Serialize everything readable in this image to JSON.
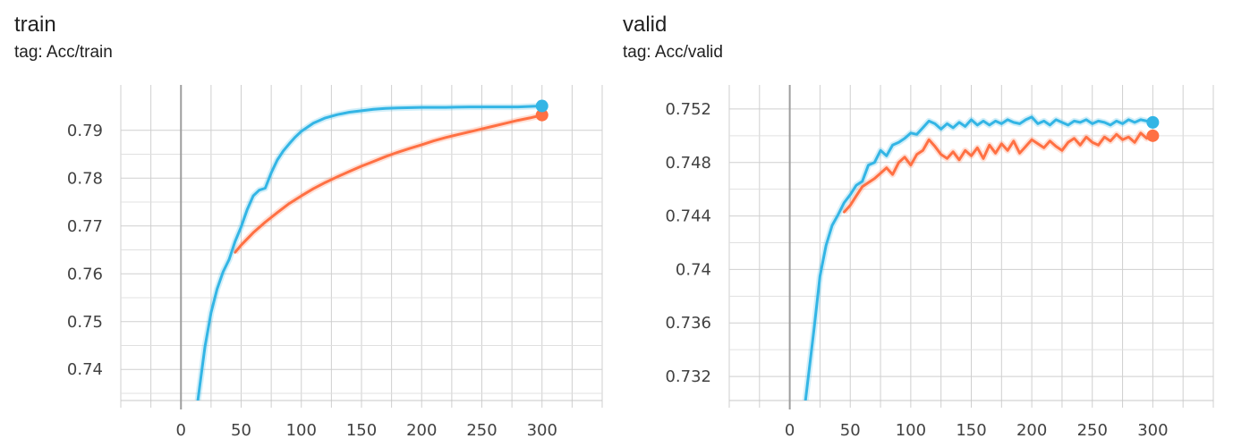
{
  "chart_data": [
    {
      "type": "line",
      "title": "train",
      "subtitle": "tag: Acc/train",
      "xlim": [
        -50,
        350
      ],
      "ylim": [
        0.7335,
        0.7995
      ],
      "xticks": [
        0,
        50,
        100,
        150,
        200,
        250,
        300
      ],
      "yticks": [
        0.74,
        0.75,
        0.76,
        0.77,
        0.78,
        0.79
      ],
      "ytick_labels": [
        "0.74",
        "0.75",
        "0.76",
        "0.77",
        "0.78",
        "0.79"
      ],
      "grid": true,
      "series": [
        {
          "color": "#ff7043",
          "x": [
            45,
            50,
            60,
            70,
            80,
            90,
            100,
            110,
            120,
            130,
            140,
            150,
            160,
            170,
            180,
            190,
            200,
            210,
            220,
            230,
            240,
            250,
            260,
            270,
            280,
            290,
            300
          ],
          "y": [
            0.7645,
            0.766,
            0.7686,
            0.7708,
            0.7728,
            0.7747,
            0.7763,
            0.7778,
            0.7791,
            0.7803,
            0.7814,
            0.7825,
            0.7835,
            0.7845,
            0.7854,
            0.7862,
            0.787,
            0.7878,
            0.7885,
            0.7891,
            0.7897,
            0.7903,
            0.7909,
            0.7915,
            0.7921,
            0.7926,
            0.7932
          ]
        },
        {
          "color": "#33b5e5",
          "x": [
            14,
            20,
            25,
            30,
            35,
            40,
            45,
            50,
            55,
            60,
            65,
            70,
            75,
            80,
            85,
            90,
            95,
            100,
            110,
            120,
            130,
            140,
            150,
            160,
            170,
            180,
            200,
            220,
            240,
            260,
            280,
            300
          ],
          "y": [
            0.7335,
            0.7448,
            0.7519,
            0.7568,
            0.7604,
            0.763,
            0.7668,
            0.7698,
            0.7734,
            0.7763,
            0.7775,
            0.7779,
            0.7811,
            0.7838,
            0.7857,
            0.7872,
            0.7886,
            0.7898,
            0.7915,
            0.7926,
            0.7933,
            0.7938,
            0.7941,
            0.7944,
            0.7946,
            0.7947,
            0.7948,
            0.7948,
            0.7949,
            0.7949,
            0.7949,
            0.7951
          ]
        }
      ]
    },
    {
      "type": "line",
      "title": "valid",
      "subtitle": "tag: Acc/valid",
      "xlim": [
        -50,
        350
      ],
      "ylim": [
        0.7302,
        0.7538
      ],
      "xticks": [
        0,
        50,
        100,
        150,
        200,
        250,
        300
      ],
      "yticks": [
        0.732,
        0.736,
        0.74,
        0.744,
        0.748,
        0.752
      ],
      "ytick_labels": [
        "0.732",
        "0.736",
        "0.74",
        "0.744",
        "0.748",
        "0.752"
      ],
      "grid": true,
      "series": [
        {
          "color": "#ff7043",
          "x": [
            45,
            50,
            55,
            60,
            65,
            70,
            75,
            80,
            85,
            90,
            95,
            100,
            105,
            110,
            115,
            120,
            125,
            130,
            135,
            140,
            145,
            150,
            155,
            160,
            165,
            170,
            175,
            180,
            185,
            190,
            195,
            200,
            205,
            210,
            215,
            220,
            225,
            230,
            235,
            240,
            245,
            250,
            255,
            260,
            265,
            270,
            275,
            280,
            285,
            290,
            295,
            300
          ],
          "y": [
            0.7443,
            0.7448,
            0.7455,
            0.7462,
            0.7465,
            0.7468,
            0.7472,
            0.7476,
            0.7471,
            0.748,
            0.7484,
            0.7478,
            0.7486,
            0.7489,
            0.7497,
            0.7492,
            0.7486,
            0.7483,
            0.7488,
            0.7482,
            0.7489,
            0.7485,
            0.7491,
            0.7483,
            0.7493,
            0.7487,
            0.7494,
            0.7489,
            0.7496,
            0.7487,
            0.7492,
            0.7497,
            0.7494,
            0.7491,
            0.7496,
            0.7492,
            0.7489,
            0.7495,
            0.7498,
            0.7493,
            0.7499,
            0.7495,
            0.7493,
            0.7499,
            0.7496,
            0.7501,
            0.7497,
            0.7499,
            0.7495,
            0.7502,
            0.7498,
            0.75
          ]
        },
        {
          "color": "#33b5e5",
          "x": [
            13,
            20,
            25,
            30,
            35,
            40,
            45,
            50,
            55,
            60,
            65,
            70,
            75,
            80,
            85,
            90,
            95,
            100,
            105,
            110,
            115,
            120,
            125,
            130,
            135,
            140,
            145,
            150,
            155,
            160,
            165,
            170,
            175,
            180,
            185,
            190,
            195,
            200,
            205,
            210,
            215,
            220,
            225,
            230,
            235,
            240,
            245,
            250,
            255,
            260,
            265,
            270,
            275,
            280,
            285,
            290,
            295,
            300
          ],
          "y": [
            0.7302,
            0.7355,
            0.7395,
            0.7418,
            0.7433,
            0.7441,
            0.745,
            0.7456,
            0.7463,
            0.7466,
            0.7478,
            0.748,
            0.7489,
            0.7485,
            0.7493,
            0.7495,
            0.7498,
            0.7502,
            0.7501,
            0.7506,
            0.7511,
            0.7509,
            0.7505,
            0.7509,
            0.7506,
            0.751,
            0.7507,
            0.7512,
            0.7508,
            0.7511,
            0.7508,
            0.7511,
            0.7509,
            0.7512,
            0.751,
            0.7509,
            0.7512,
            0.7514,
            0.7509,
            0.7511,
            0.7508,
            0.7512,
            0.751,
            0.7508,
            0.7511,
            0.751,
            0.7512,
            0.7509,
            0.7511,
            0.751,
            0.7508,
            0.7511,
            0.7509,
            0.7512,
            0.751,
            0.7512,
            0.7511,
            0.751
          ]
        }
      ]
    }
  ]
}
